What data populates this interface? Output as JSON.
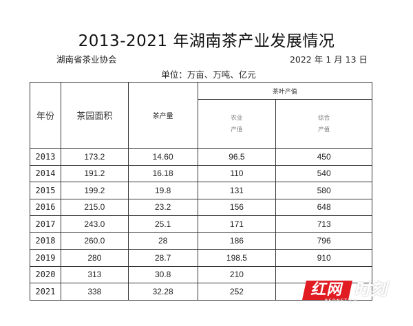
{
  "document": {
    "title": "2013-2021 年湖南茶产业发展情况",
    "organization": "湖南省茶业协会",
    "date": "2022 年 1 月 13 日",
    "unit_note": "单位：万亩、万吨、亿元"
  },
  "table": {
    "headers": {
      "year": "年份",
      "area": "茶园面积",
      "output": "茶产量",
      "value_group": "茶叶产值",
      "agri_value_line1": "农业",
      "agri_value_line2": "产值",
      "total_value_line1": "综合",
      "total_value_line2": "产值"
    },
    "rows": [
      {
        "year": "2013",
        "area": "173.2",
        "output": "14.60",
        "agri_value": "96.5",
        "total_value": "450"
      },
      {
        "year": "2014",
        "area": "191.2",
        "output": "16.18",
        "agri_value": "110",
        "total_value": "540"
      },
      {
        "year": "2015",
        "area": "199.2",
        "output": "19.8",
        "agri_value": "131",
        "total_value": "580"
      },
      {
        "year": "2016",
        "area": "215.0",
        "output": "23.2",
        "agri_value": "156",
        "total_value": "648"
      },
      {
        "year": "2017",
        "area": "243.0",
        "output": "25.1",
        "agri_value": "171",
        "total_value": "713"
      },
      {
        "year": "2018",
        "area": "260.0",
        "output": "28",
        "agri_value": "186",
        "total_value": "796"
      },
      {
        "year": "2019",
        "area": "280",
        "output": "28.7",
        "agri_value": "198.5",
        "total_value": "910"
      },
      {
        "year": "2020",
        "area": "313",
        "output": "30.8",
        "agri_value": "210",
        "total_value": ""
      },
      {
        "year": "2021",
        "area": "338",
        "output": "32.28",
        "agri_value": "252",
        "total_value": "1012"
      }
    ]
  },
  "watermark": {
    "brand_red": "红网",
    "brand_text": "时刻",
    "sub_text": "REDNET.CN",
    "color": "#e01b22"
  }
}
